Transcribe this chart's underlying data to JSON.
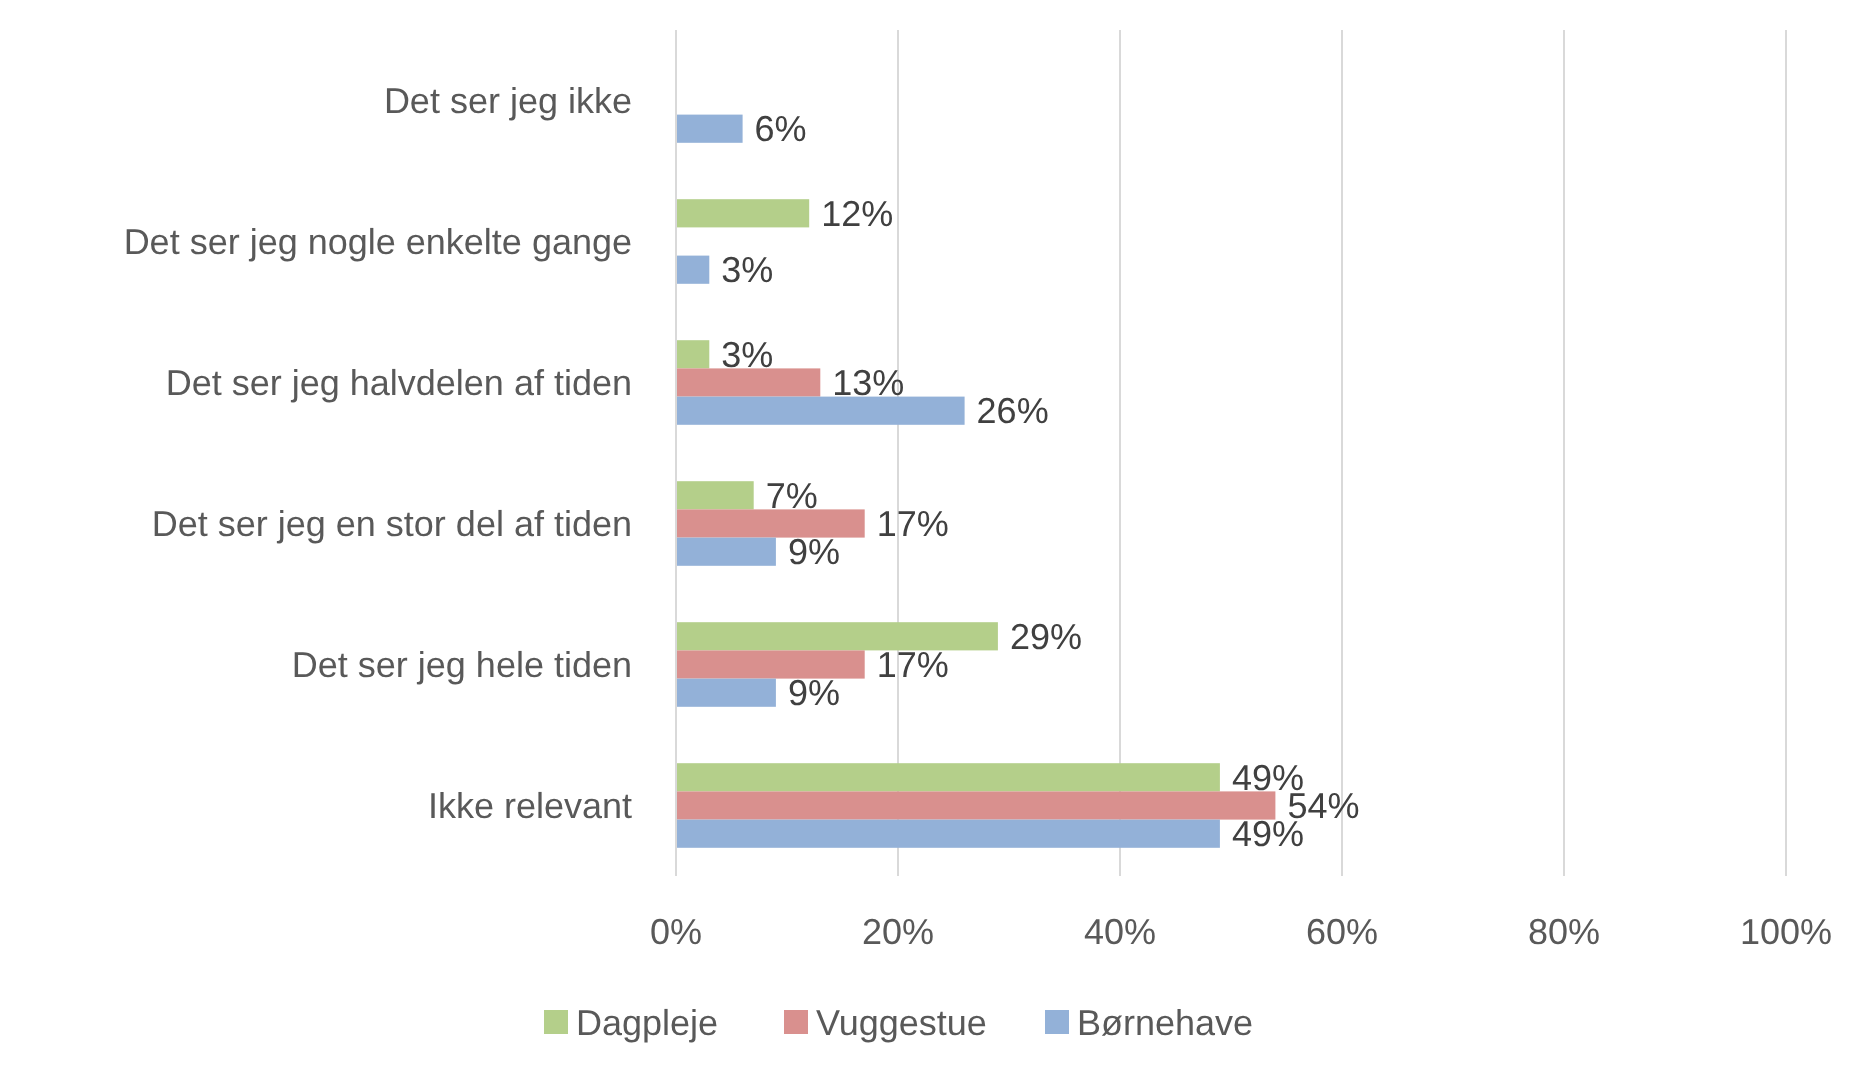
{
  "chart_data": {
    "type": "bar",
    "orientation": "horizontal",
    "categories": [
      "Det ser jeg ikke",
      "Det ser jeg nogle enkelte gange",
      "Det ser jeg halvdelen af tiden",
      "Det ser jeg en stor del af tiden",
      "Det ser jeg hele tiden",
      "Ikke relevant"
    ],
    "series": [
      {
        "name": "Dagpleje",
        "color": "#b4cf8a",
        "values": [
          null,
          12,
          3,
          7,
          29,
          49
        ],
        "value_labels": [
          null,
          "12%",
          "3%",
          "7%",
          "29%",
          "49%"
        ]
      },
      {
        "name": "Vuggestue",
        "color": "#d9908e",
        "values": [
          null,
          null,
          13,
          17,
          17,
          54
        ],
        "value_labels": [
          null,
          null,
          "13%",
          "17%",
          "17%",
          "54%"
        ]
      },
      {
        "name": "Børnehave",
        "color": "#93b1d8",
        "values": [
          6,
          3,
          26,
          9,
          9,
          49
        ],
        "value_labels": [
          "6%",
          "3%",
          "26%",
          "9%",
          "9%",
          "49%"
        ]
      }
    ],
    "xlim": [
      0,
      100
    ],
    "xticks": [
      {
        "value": 0,
        "label": "0%"
      },
      {
        "value": 20,
        "label": "20%"
      },
      {
        "value": 40,
        "label": "40%"
      },
      {
        "value": 60,
        "label": "60%"
      },
      {
        "value": 80,
        "label": "80%"
      },
      {
        "value": 100,
        "label": "100%"
      }
    ],
    "grid": "x",
    "legend": "bottom"
  }
}
